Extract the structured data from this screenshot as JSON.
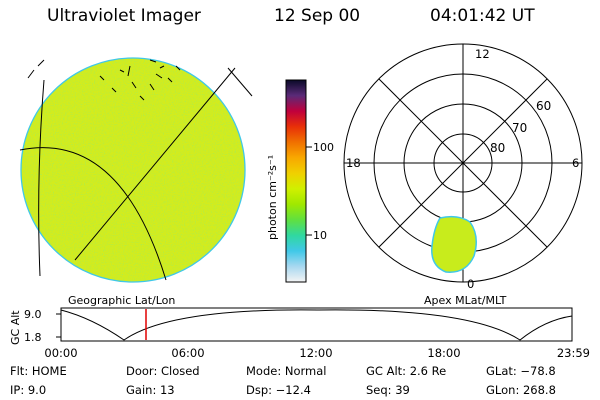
{
  "header": {
    "instrument": "Ultraviolet Imager",
    "date": "12 Sep 00",
    "time": "04:01:42 UT"
  },
  "colorbar": {
    "unit_label": "photon cm⁻²s⁻¹",
    "tick_labels": [
      "100",
      "10"
    ],
    "stops": [
      "#0a0a28",
      "#5a2a78",
      "#c0003c",
      "#e83008",
      "#f07000",
      "#f8a800",
      "#f0d000",
      "#d0f000",
      "#a0e800",
      "#60e040",
      "#30d8a0",
      "#40c8e8",
      "#a8d8f0",
      "#f4f4f4"
    ]
  },
  "left_panel": {
    "label": "Geographic Lat/Lon",
    "disk_color": "#d4ec1c",
    "limb_color": "#40c8e8"
  },
  "polar_panel": {
    "label": "Apex MLat/MLT",
    "mlt_labels": {
      "top": "12",
      "left": "18",
      "right": "6",
      "bottom": "0"
    },
    "lat_labels": [
      "60",
      "70",
      "80"
    ],
    "blob_color": "#c8ec1c",
    "blob_edge": "#40c8e8"
  },
  "altitude_plot": {
    "ylabel": "GC Alt",
    "ytick_labels": [
      "9.0",
      "1.8"
    ],
    "xtick_labels": [
      "00:00",
      "06:00",
      "12:00",
      "18:00",
      "23:59"
    ],
    "marker_color": "#e00000"
  },
  "info": {
    "flt": "Flt: HOME",
    "door": "Door: Closed",
    "mode": "Mode: Normal",
    "gc_alt": "GC Alt: 2.6 Re",
    "glat": "GLat: −78.8",
    "ip": "IP:  9.0",
    "gain": "Gain: 13",
    "dsp": "Dsp:  −12.4",
    "seq": "Seq: 39",
    "glon": "GLon: 268.8"
  }
}
